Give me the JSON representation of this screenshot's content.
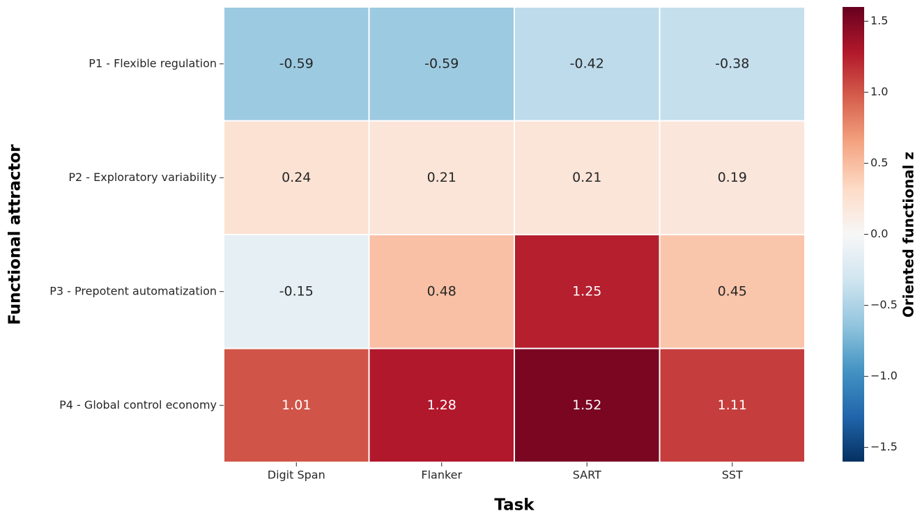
{
  "chart_data": {
    "type": "heatmap",
    "x_label": "Task",
    "y_label": "Functional attractor",
    "colorbar_label": "Oriented functional z",
    "categories": [
      "Digit Span",
      "Flanker",
      "SART",
      "SST"
    ],
    "rows": [
      "P1 - Flexible regulation",
      "P2 - Exploratory variability",
      "P3 - Prepotent automatization",
      "P4 - Global control economy"
    ],
    "values": [
      [
        -0.59,
        -0.59,
        -0.42,
        -0.38
      ],
      [
        0.24,
        0.21,
        0.21,
        0.19
      ],
      [
        -0.15,
        0.48,
        1.25,
        0.45
      ],
      [
        1.01,
        1.28,
        1.52,
        1.11
      ]
    ],
    "colormap": "RdBu_r",
    "clim": [
      -1.6,
      1.6
    ],
    "cticks": [
      {
        "value": -1.5,
        "label": "−1.5"
      },
      {
        "value": -1.0,
        "label": "−1.0"
      },
      {
        "value": -0.5,
        "label": "−0.5"
      },
      {
        "value": 0.0,
        "label": "0.0"
      },
      0.5,
      {
        "value": 1.0,
        "label": "1.0"
      },
      1.5
    ]
  }
}
